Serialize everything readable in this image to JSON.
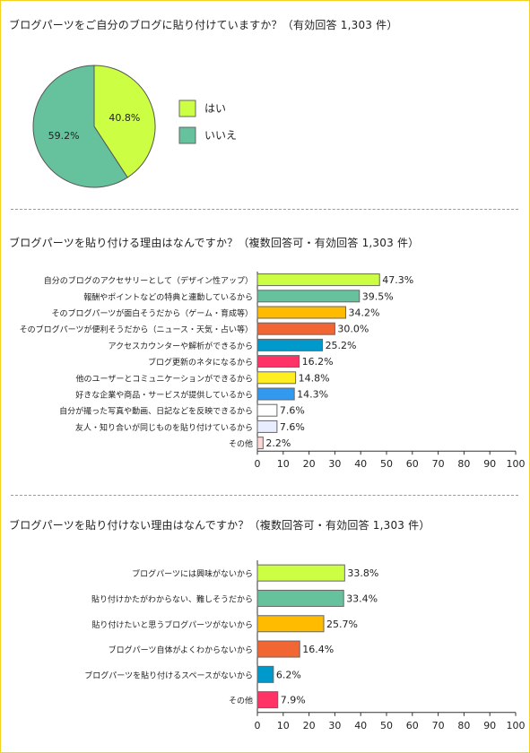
{
  "sections": {
    "pie_title": "ブログパーツをご自分のブログに貼り付けていますか？（有効回答 1,303 件）",
    "reasons_title": "ブログパーツを貼り付ける理由はなんですか？（複数回答可・有効回答 1,303 件）",
    "not_reasons_title": "ブログパーツを貼り付けない理由はなんですか？（複数回答可・有効回答 1,303 件）"
  },
  "chart_data": [
    {
      "type": "pie",
      "title": "ブログパーツをご自分のブログに貼り付けていますか？（有効回答 1,303 件）",
      "categories": [
        "はい",
        "いいえ"
      ],
      "values": [
        40.8,
        59.2
      ],
      "value_labels": [
        "40.8%",
        "59.2%"
      ],
      "colors": [
        "#ccff44",
        "#66c29d"
      ],
      "legend": "right"
    },
    {
      "type": "bar",
      "orientation": "horizontal",
      "title": "ブログパーツを貼り付ける理由はなんですか？（複数回答可・有効回答 1,303 件）",
      "categories": [
        "自分のブログのアクセサリーとして（デザイン性アップ）",
        "報酬やポイントなどの特典と連動しているから",
        "そのブログパーツが面白そうだから（ゲーム・育成等）",
        "そのブログパーツが便利そうだから（ニュース・天気・占い等）",
        "アクセスカウンターや解析ができるから",
        "ブログ更新のネタになるから",
        "他のユーザーとコミュニケーションができるから",
        "好きな企業や商品・サービスが提供しているから",
        "自分が撮った写真や動画、日記などを反映できるから",
        "友人・知り合いが同じものを貼り付けているから",
        "その他"
      ],
      "values": [
        47.3,
        39.5,
        34.2,
        30.0,
        25.2,
        16.2,
        14.8,
        14.3,
        7.6,
        7.6,
        2.2
      ],
      "value_labels": [
        "47.3%",
        "39.5%",
        "34.2%",
        "30.0%",
        "25.2%",
        "16.2%",
        "14.8%",
        "14.3%",
        "7.6%",
        "7.6%",
        "2.2%"
      ],
      "colors": [
        "#ccff44",
        "#66c29d",
        "#ffbb00",
        "#f26633",
        "#0099cc",
        "#ff3366",
        "#ffee22",
        "#3399ee",
        "#ffffff",
        "#e8eeff",
        "#ffd6d6"
      ],
      "xlim": [
        0,
        100
      ],
      "xticks": [
        "0",
        "10",
        "20",
        "30",
        "40",
        "50",
        "60",
        "70",
        "80",
        "90",
        "100"
      ]
    },
    {
      "type": "bar",
      "orientation": "horizontal",
      "title": "ブログパーツを貼り付けない理由はなんですか？（複数回答可・有効回答 1,303 件）",
      "categories": [
        "ブログパーツには興味がないから",
        "貼り付けかたがわからない、難しそうだから",
        "貼り付けたいと思うブログパーツがないから",
        "ブログパーツ自体がよくわからないから",
        "ブログパーツを貼り付けるスペースがないから",
        "その他"
      ],
      "values": [
        33.8,
        33.4,
        25.7,
        16.4,
        6.2,
        7.9
      ],
      "value_labels": [
        "33.8%",
        "33.4%",
        "25.7%",
        "16.4%",
        "6.2%",
        "7.9%"
      ],
      "colors": [
        "#ccff44",
        "#66c29d",
        "#ffbb00",
        "#f26633",
        "#0099cc",
        "#ff3366"
      ],
      "xlim": [
        0,
        100
      ],
      "xticks": [
        "0",
        "10",
        "20",
        "30",
        "40",
        "50",
        "60",
        "70",
        "80",
        "90",
        "100"
      ]
    }
  ]
}
